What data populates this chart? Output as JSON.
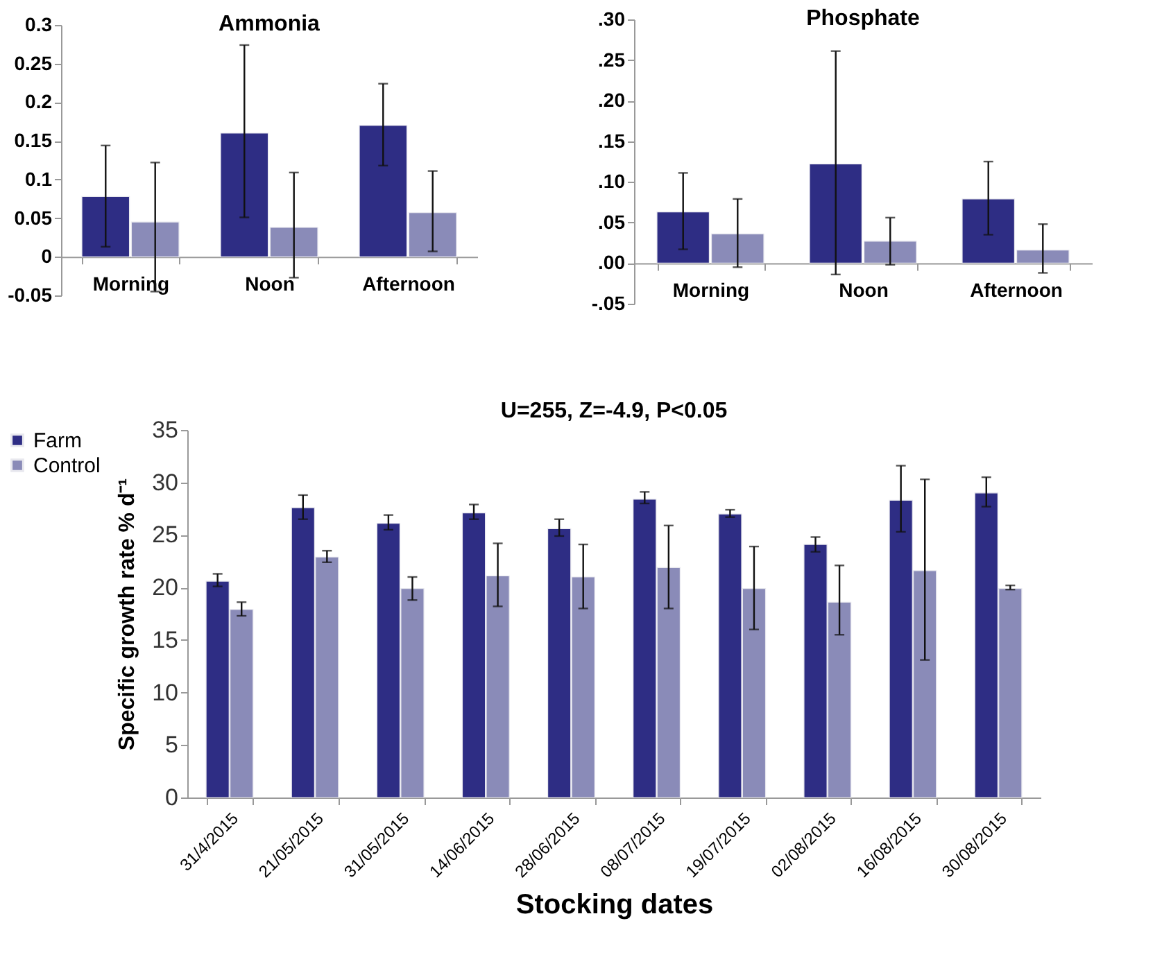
{
  "chart_data": [
    {
      "type": "bar",
      "title": "Ammonia",
      "categories": [
        "Morning",
        "Noon",
        "Afternoon"
      ],
      "series": [
        {
          "color": "#2e2d84",
          "values": [
            0.078,
            0.16,
            0.17
          ],
          "errors": [
            [
              0.013,
              0.144
            ],
            [
              0.051,
              0.274
            ],
            [
              0.118,
              0.224
            ]
          ]
        },
        {
          "color": "#8a8bb8",
          "values": [
            0.045,
            0.038,
            0.057
          ],
          "errors": [
            [
              -0.045,
              0.122
            ],
            [
              -0.027,
              0.109
            ],
            [
              0.007,
              0.111
            ]
          ]
        }
      ],
      "ylim": [
        -0.05,
        0.3
      ],
      "yticks": [
        -0.05,
        0,
        0.05,
        0.1,
        0.15,
        0.2,
        0.25,
        0.3
      ]
    },
    {
      "type": "bar",
      "title": "Phosphate",
      "categories": [
        "Morning",
        "Noon",
        "Afternoon"
      ],
      "series": [
        {
          "color": "#2e2d84",
          "values": [
            0.063,
            0.122,
            0.079
          ],
          "errors": [
            [
              0.017,
              0.111
            ],
            [
              -0.014,
              0.261
            ],
            [
              0.035,
              0.125
            ]
          ]
        },
        {
          "color": "#8a8bb8",
          "values": [
            0.036,
            0.027,
            0.016
          ],
          "errors": [
            [
              -0.005,
              0.079
            ],
            [
              -0.002,
              0.056
            ],
            [
              -0.012,
              0.048
            ]
          ]
        }
      ],
      "ylim": [
        -0.05,
        0.3
      ],
      "yticks": [
        {
          "value": -0.05,
          "label": "-.05"
        },
        {
          "value": 0,
          "label": ".00"
        },
        {
          "value": 0.05,
          "label": ".05"
        },
        {
          "value": 0.1,
          "label": ".10"
        },
        {
          "value": 0.15,
          "label": ".15"
        },
        {
          "value": 0.2,
          "label": ".20"
        },
        {
          "value": 0.25,
          "label": ".25"
        },
        {
          "value": 0.3,
          "label": ".30"
        }
      ]
    },
    {
      "type": "bar",
      "xlabel": "Stocking dates",
      "ylabel": "Specific growth rate  % d⁻¹",
      "annotations": [
        "U=255,  Z=-4.9, P<0.05"
      ],
      "categories": [
        "31/4/2015",
        "21/05/2015",
        "31/05/2015",
        "14/06/2015",
        "28/06/2015",
        "08/07/2015",
        "19/07/2015",
        "02/08/2015",
        "16/08/2015",
        "30/08/2015"
      ],
      "series": [
        {
          "name": "Farm",
          "color": "#2e2d84",
          "values": [
            20.6,
            27.6,
            26.1,
            27.1,
            25.6,
            28.4,
            27.0,
            24.1,
            28.3,
            29.0
          ],
          "errors": [
            [
              20.1,
              21.3
            ],
            [
              26.5,
              28.8
            ],
            [
              25.5,
              26.9
            ],
            [
              26.5,
              27.9
            ],
            [
              24.9,
              26.5
            ],
            [
              28.0,
              29.1
            ],
            [
              26.7,
              27.4
            ],
            [
              23.4,
              24.8
            ],
            [
              25.3,
              31.6
            ],
            [
              27.7,
              30.5
            ]
          ]
        },
        {
          "name": "Control",
          "color": "#8a8bb8",
          "values": [
            17.9,
            22.9,
            19.9,
            21.1,
            21.0,
            21.9,
            19.9,
            18.6,
            21.6,
            19.9
          ],
          "errors": [
            [
              17.3,
              18.6
            ],
            [
              22.4,
              23.5
            ],
            [
              18.8,
              21.0
            ],
            [
              18.2,
              24.2
            ],
            [
              18.0,
              24.1
            ],
            [
              18.0,
              25.9
            ],
            [
              16.0,
              23.9
            ],
            [
              15.5,
              22.1
            ],
            [
              13.1,
              30.3
            ],
            [
              19.8,
              20.2
            ]
          ]
        }
      ],
      "ylim": [
        0,
        35
      ],
      "yticks": [
        0,
        5,
        10,
        15,
        20,
        25,
        30,
        35
      ],
      "legend": "left"
    }
  ]
}
